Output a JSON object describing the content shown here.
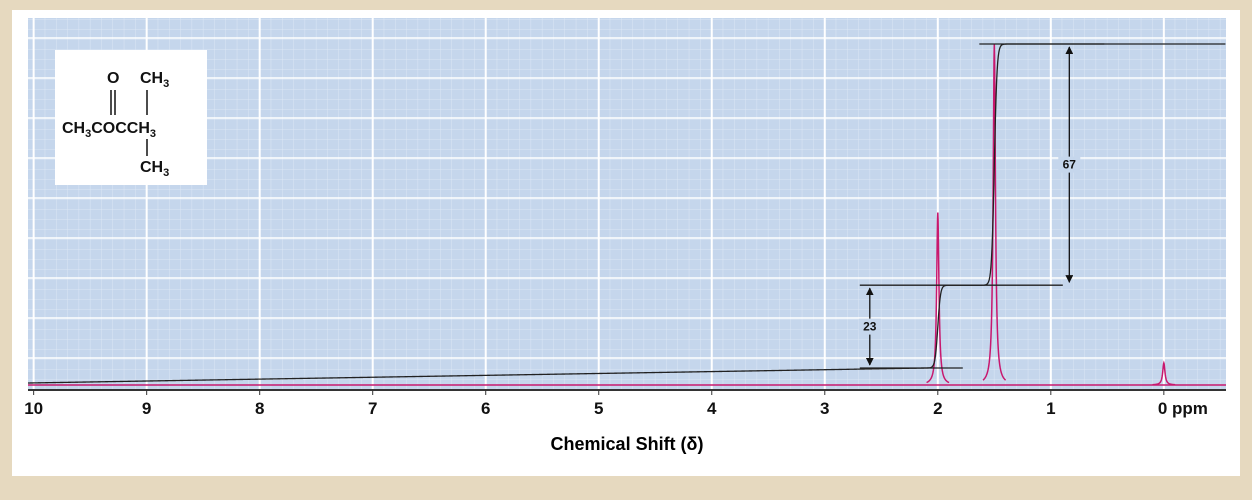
{
  "chart_data": {
    "type": "nmr",
    "x_label": "Chemical Shift (δ)",
    "xlim": [
      10.05,
      -0.55
    ],
    "xticks": [
      10,
      9,
      8,
      7,
      6,
      5,
      4,
      3,
      2,
      1,
      {
        "value": 0,
        "label": "0 ppm"
      }
    ],
    "grid": true,
    "peaks": {
      "color": "#c8186e",
      "x": [
        2.0,
        1.5,
        0.0
      ],
      "intensity": [
        47,
        93,
        6
      ]
    },
    "integrals": {
      "color": "#222222",
      "x": [
        2.0,
        1.5
      ],
      "values": [
        23,
        67
      ]
    },
    "structure": {
      "top": [
        "O",
        "CH",
        "3"
      ],
      "middle": [
        "CH",
        "3",
        "COCCH",
        "3"
      ],
      "bottom": [
        "CH",
        "3"
      ]
    }
  }
}
